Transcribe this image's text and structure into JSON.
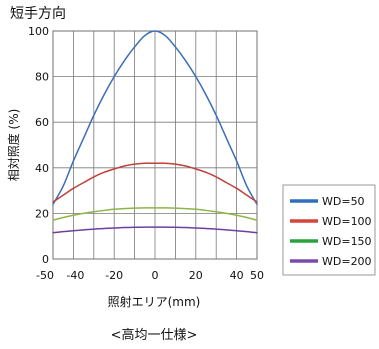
{
  "chart_data": {
    "type": "line",
    "title": "短手方向",
    "ylabel": "相対照度 (%)",
    "xlabel": "照射エリア(mm)",
    "caption": "<高均一仕様>",
    "xlim": [
      -50,
      50
    ],
    "ylim": [
      0,
      100
    ],
    "x_ticks": [
      -50,
      -40,
      -20,
      0,
      20,
      40,
      50
    ],
    "y_ticks": [
      0,
      20,
      40,
      60,
      80,
      100
    ],
    "x_grid": [
      -50,
      -40,
      -30,
      -20,
      -10,
      0,
      10,
      20,
      30,
      40,
      50
    ],
    "y_grid": [
      0,
      20,
      40,
      60,
      80,
      100
    ],
    "grid": true,
    "legend_position": "right",
    "series": [
      {
        "name": "WD=50",
        "color": "#3a6eb5",
        "x": [
          -50,
          -45,
          -40,
          -35,
          -30,
          -25,
          -20,
          -15,
          -10,
          -5,
          0,
          5,
          10,
          15,
          20,
          25,
          30,
          35,
          40,
          45,
          50
        ],
        "values": [
          24,
          32,
          43,
          53,
          63,
          72,
          80,
          87,
          93,
          98,
          100,
          98,
          93,
          87,
          80,
          72,
          63,
          53,
          43,
          32,
          24
        ]
      },
      {
        "name": "WD=100",
        "color": "#c0403c",
        "x": [
          -50,
          -45,
          -40,
          -35,
          -30,
          -25,
          -20,
          -15,
          -10,
          -5,
          0,
          5,
          10,
          15,
          20,
          25,
          30,
          35,
          40,
          45,
          50
        ],
        "values": [
          25,
          28,
          31,
          33.5,
          36,
          38,
          39.5,
          40.8,
          41.6,
          42,
          42,
          42,
          41.6,
          40.8,
          39.5,
          38,
          36,
          33.5,
          31,
          28,
          25
        ]
      },
      {
        "name": "WD=150",
        "color": "#8db548",
        "x": [
          -50,
          -45,
          -40,
          -35,
          -30,
          -25,
          -20,
          -15,
          -10,
          -5,
          0,
          5,
          10,
          15,
          20,
          25,
          30,
          35,
          40,
          45,
          50
        ],
        "values": [
          17,
          18.2,
          19.2,
          20,
          20.7,
          21.3,
          21.8,
          22.1,
          22.3,
          22.4,
          22.4,
          22.4,
          22.3,
          22.1,
          21.8,
          21.3,
          20.7,
          20,
          19.2,
          18.2,
          17
        ]
      },
      {
        "name": "WD=200",
        "color": "#6d3fa0",
        "x": [
          -50,
          -45,
          -40,
          -35,
          -30,
          -25,
          -20,
          -15,
          -10,
          -5,
          0,
          5,
          10,
          15,
          20,
          25,
          30,
          35,
          40,
          45,
          50
        ],
        "values": [
          11.5,
          12,
          12.4,
          12.8,
          13.1,
          13.4,
          13.6,
          13.8,
          13.9,
          14,
          14,
          14,
          13.9,
          13.8,
          13.6,
          13.4,
          13.1,
          12.8,
          12.4,
          12,
          11.5
        ]
      }
    ],
    "legend": [
      {
        "label": "WD=50",
        "color": "#2f6fbf"
      },
      {
        "label": "WD=100",
        "color": "#d8443c"
      },
      {
        "label": "WD=150",
        "color": "#29a33b"
      },
      {
        "label": "WD=200",
        "color": "#7d4bb0"
      }
    ]
  }
}
